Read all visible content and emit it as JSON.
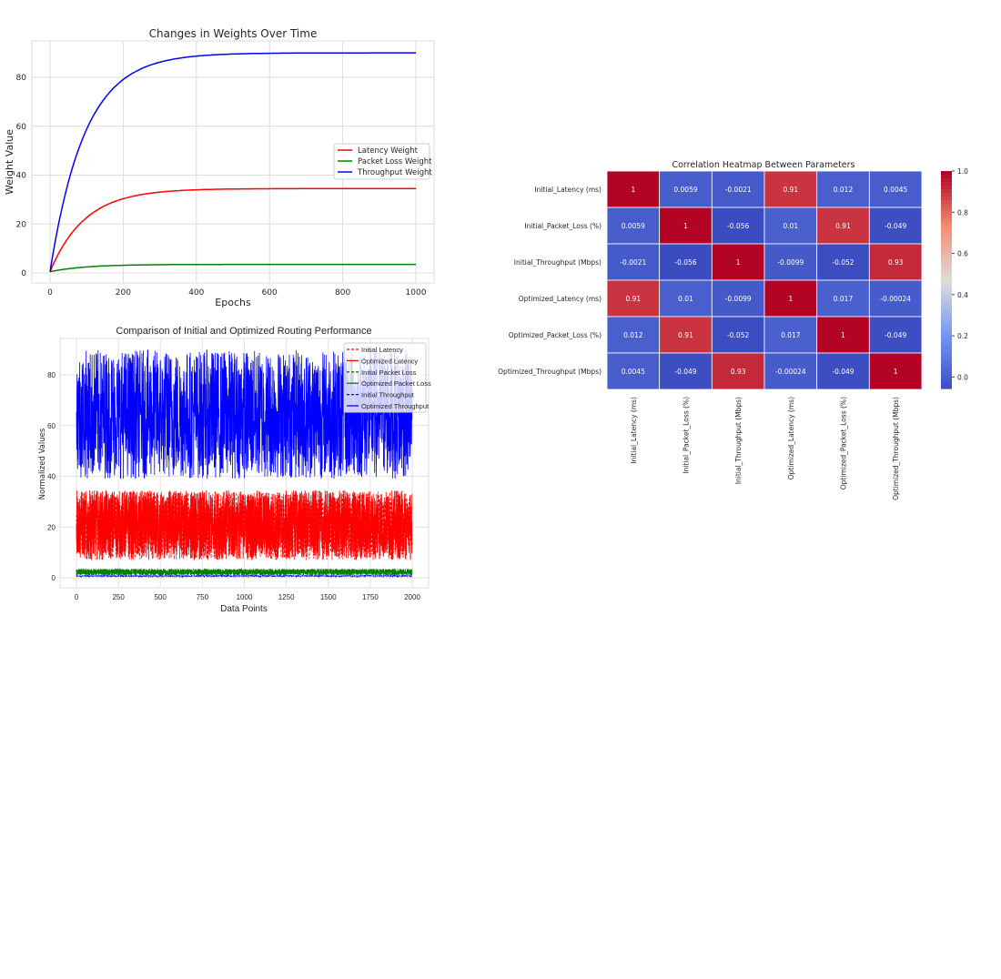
{
  "chart_data": [
    {
      "type": "line",
      "title": "Changes in Weights Over Time",
      "xlabel": "Epochs",
      "ylabel": "Weight Value",
      "xlim": [
        -50,
        1050
      ],
      "ylim": [
        -4,
        94
      ],
      "xticks": [
        "0",
        "200",
        "400",
        "600",
        "800",
        "1000"
      ],
      "yticks": [
        "0",
        "20",
        "40",
        "60",
        "80"
      ],
      "grid": true,
      "legend_position": "center-right",
      "x": [
        0,
        50,
        100,
        150,
        200,
        250,
        300,
        400,
        500,
        600,
        800,
        1000
      ],
      "series": [
        {
          "name": "Latency Weight",
          "color": "#ff0000",
          "values": [
            0.5,
            14.1,
            22.5,
            27.4,
            30.3,
            32.0,
            33.0,
            34.0,
            34.3,
            34.4,
            34.5,
            34.5
          ]
        },
        {
          "name": "Packet Loss Weight",
          "color": "#008000",
          "values": [
            0.5,
            1.4,
            2.3,
            2.8,
            3.1,
            3.2,
            3.3,
            3.4,
            3.5,
            3.5,
            3.5,
            3.5
          ]
        },
        {
          "name": "Throughput Weight",
          "color": "#0000ff",
          "values": [
            0.5,
            36.8,
            58.6,
            71.5,
            79.0,
            83.5,
            86.1,
            88.7,
            89.5,
            89.8,
            90.0,
            90.0
          ]
        }
      ]
    },
    {
      "type": "line",
      "title": "Comparison of Initial and Optimized Routing Performance",
      "xlabel": "Data Points",
      "ylabel": "Normalized Values",
      "xlim": [
        -100,
        2100
      ],
      "ylim": [
        -4,
        94
      ],
      "xticks": [
        "0",
        "250",
        "500",
        "750",
        "1000",
        "1250",
        "1500",
        "1750",
        "2000"
      ],
      "yticks": [
        "0",
        "20",
        "40",
        "60",
        "80"
      ],
      "grid": true,
      "legend_position": "top-right",
      "n_points": 2000,
      "series": [
        {
          "name": "Initial Latency",
          "color": "#ff0000",
          "style": "dashed",
          "y_range": [
            7,
            34.5
          ]
        },
        {
          "name": "Optimized Latency",
          "color": "#ff0000",
          "style": "solid",
          "y_range": [
            7,
            34.5
          ]
        },
        {
          "name": "Initial Packet Loss",
          "color": "#008000",
          "style": "dashed",
          "y_range": [
            1,
            3.5
          ]
        },
        {
          "name": "Optimized Packet Loss",
          "color": "#008000",
          "style": "solid",
          "y_range": [
            1,
            3.5
          ]
        },
        {
          "name": "Initial Throughput",
          "color": "#0000ff",
          "style": "dashed",
          "y_range": [
            0.4,
            1
          ]
        },
        {
          "name": "Optimized Throughput",
          "color": "#0000ff",
          "style": "solid",
          "y_range": [
            39,
            90
          ]
        }
      ]
    },
    {
      "type": "heatmap",
      "title": "Correlation Heatmap Between Parameters",
      "colormap": "coolwarm",
      "vmin": -0.056,
      "vmax": 1.0,
      "colorbar_ticks": [
        "0.0",
        "0.2",
        "0.4",
        "0.6",
        "0.8",
        "1.0"
      ],
      "labels": [
        "Initial_Latency (ms)",
        "Initial_Packet_Loss (%)",
        "Initial_Throughput (Mbps)",
        "Optimized_Latency (ms)",
        "Optimized_Packet_Loss (%)",
        "Optimized_Throughput (Mbps)"
      ],
      "values": [
        [
          "1",
          "0.0059",
          "-0.0021",
          "0.91",
          "0.012",
          "0.0045"
        ],
        [
          "0.0059",
          "1",
          "-0.056",
          "0.01",
          "0.91",
          "-0.049"
        ],
        [
          "-0.0021",
          "-0.056",
          "1",
          "-0.0099",
          "-0.052",
          "0.93"
        ],
        [
          "0.91",
          "0.01",
          "-0.0099",
          "1",
          "0.017",
          "-0.00024"
        ],
        [
          "0.012",
          "0.91",
          "-0.052",
          "0.017",
          "1",
          "-0.049"
        ],
        [
          "0.0045",
          "-0.049",
          "0.93",
          "-0.00024",
          "-0.049",
          "1"
        ]
      ]
    }
  ]
}
